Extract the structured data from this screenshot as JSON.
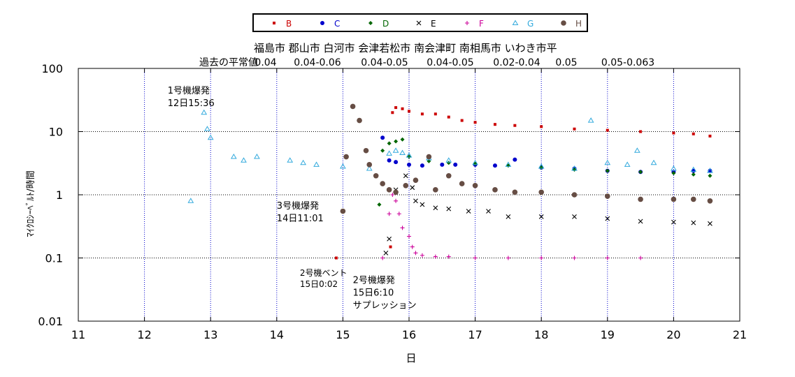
{
  "chart_data": {
    "type": "scatter",
    "title": "",
    "xlabel": "日",
    "ylabel": "ﾏｲｸﾛｼｰﾍﾞﾙﾄ/時間",
    "xlim": [
      11,
      21
    ],
    "ylim": [
      0.01,
      100
    ],
    "yscale": "log",
    "x_ticks": [
      "11",
      "12",
      "13",
      "14",
      "15",
      "16",
      "17",
      "18",
      "19",
      "20",
      "21"
    ],
    "y_ticks": [
      "0.01",
      "0.1",
      "1",
      "10",
      "100"
    ],
    "grid": true,
    "legend_position": "top-center",
    "cities_label": "福島市  郡山市  白河市  会津若松市  南会津町  南相馬市  いわき市平",
    "baseline_label": "過去の平常値",
    "baseline_values": [
      "0.04",
      "0.04-0.06",
      "0.04-0.05",
      "0.04-0.05",
      "0.02-0.04",
      "0.05",
      "0.05-0.063"
    ],
    "annotations": [
      {
        "x": 12.35,
        "y": 40,
        "lines": [
          "1号機爆発",
          "12日15:36"
        ]
      },
      {
        "x": 14.0,
        "y": 0.6,
        "lines": [
          "3号機爆発",
          "14日11:01"
        ]
      },
      {
        "x": 14.35,
        "y": 0.052,
        "lines": [
          "2号機ベント",
          "15日0:02"
        ],
        "small": true
      },
      {
        "x": 15.15,
        "y": 0.04,
        "lines": [
          "2号機爆発",
          "15日6:10",
          "サプレッション"
        ]
      }
    ],
    "series": [
      {
        "name": "B",
        "color": "#cc0000",
        "marker": "square",
        "x": [
          14.9,
          15.72,
          15.75,
          15.8,
          15.9,
          16.0,
          16.2,
          16.4,
          16.6,
          16.8,
          17.0,
          17.3,
          17.6,
          18.0,
          18.5,
          19.0,
          19.5,
          20.0,
          20.3,
          20.55
        ],
        "y": [
          0.1,
          0.15,
          20,
          24,
          23,
          21,
          19,
          19,
          17,
          15,
          14,
          13,
          12.5,
          12,
          11,
          10.5,
          10,
          9.5,
          9.2,
          8.5
        ]
      },
      {
        "name": "C",
        "color": "#0000cc",
        "marker": "circle",
        "x": [
          15.6,
          15.7,
          15.8,
          16.0,
          16.2,
          16.5,
          16.7,
          17.0,
          17.3,
          17.6,
          18.0,
          18.5,
          19.0,
          19.5,
          20.0,
          20.3,
          20.55
        ],
        "y": [
          8,
          3.5,
          3.3,
          3.0,
          2.9,
          3.0,
          3.0,
          3.0,
          2.9,
          3.6,
          2.7,
          2.6,
          2.4,
          2.3,
          2.3,
          2.4,
          2.4
        ]
      },
      {
        "name": "D",
        "color": "#006600",
        "marker": "diamond",
        "x": [
          15.55,
          15.6,
          15.7,
          15.8,
          15.9,
          16.0,
          16.3,
          16.6,
          17.0,
          17.5,
          18.0,
          18.5,
          19.0,
          19.5,
          20.0,
          20.3,
          20.55
        ],
        "y": [
          0.7,
          5,
          6.5,
          7,
          7.5,
          4.0,
          3.4,
          3.2,
          3.1,
          2.9,
          2.7,
          2.5,
          2.4,
          2.3,
          2.2,
          2.1,
          2.0
        ]
      },
      {
        "name": "E",
        "color": "#000000",
        "marker": "cross",
        "x": [
          15.65,
          15.7,
          15.8,
          15.95,
          16.05,
          16.1,
          16.2,
          16.4,
          16.6,
          16.9,
          17.2,
          17.5,
          18.0,
          18.5,
          19.0,
          19.5,
          20.0,
          20.3,
          20.55
        ],
        "y": [
          0.12,
          0.2,
          1.2,
          2.0,
          1.3,
          0.8,
          0.7,
          0.62,
          0.6,
          0.55,
          0.55,
          0.45,
          0.45,
          0.45,
          0.42,
          0.38,
          0.37,
          0.36,
          0.35
        ]
      },
      {
        "name": "F",
        "color": "#cc0099",
        "marker": "plus",
        "x": [
          15.6,
          15.7,
          15.75,
          15.8,
          15.85,
          15.9,
          16.0,
          16.05,
          16.1,
          16.2,
          16.4,
          16.6,
          17.0,
          17.5,
          18.0,
          18.5,
          19.0,
          19.5
        ],
        "y": [
          0.1,
          0.5,
          1.0,
          0.8,
          0.5,
          0.3,
          0.22,
          0.15,
          0.12,
          0.11,
          0.105,
          0.105,
          0.1,
          0.1,
          0.1,
          0.1,
          0.1,
          0.1
        ]
      },
      {
        "name": "G",
        "color": "#33aadd",
        "marker": "triangle",
        "x": [
          12.7,
          12.9,
          12.95,
          13.0,
          13.35,
          13.5,
          13.7,
          14.2,
          14.4,
          14.6,
          15.0,
          15.4,
          15.7,
          15.8,
          15.9,
          16.0,
          16.3,
          16.6,
          17.0,
          17.5,
          18.0,
          18.5,
          18.75,
          19.0,
          19.3,
          19.45,
          19.7,
          20.0,
          20.3,
          20.55
        ],
        "y": [
          0.8,
          20,
          11,
          8,
          4,
          3.5,
          4,
          3.5,
          3.2,
          3.0,
          2.8,
          2.6,
          4.5,
          5,
          4.6,
          4.2,
          3.8,
          3.5,
          3.2,
          3.0,
          2.8,
          2.6,
          15,
          3.2,
          3.0,
          5,
          3.2,
          2.6,
          2.5,
          2.4
        ]
      },
      {
        "name": "H",
        "color": "#664d44",
        "marker": "circle",
        "x": [
          15.0,
          15.05,
          15.15,
          15.25,
          15.35,
          15.4,
          15.5,
          15.6,
          15.7,
          15.8,
          15.95,
          16.1,
          16.3,
          16.4,
          16.6,
          16.8,
          17.0,
          17.3,
          17.6,
          18.0,
          18.5,
          19.0,
          19.5,
          20.0,
          20.3,
          20.55
        ],
        "y": [
          0.55,
          4.0,
          25,
          15,
          5,
          3.0,
          2.0,
          1.5,
          1.2,
          1.1,
          1.4,
          1.7,
          4.0,
          1.2,
          2.0,
          1.5,
          1.4,
          1.2,
          1.1,
          1.1,
          1.0,
          0.95,
          0.85,
          0.85,
          0.85,
          0.8
        ]
      }
    ]
  }
}
